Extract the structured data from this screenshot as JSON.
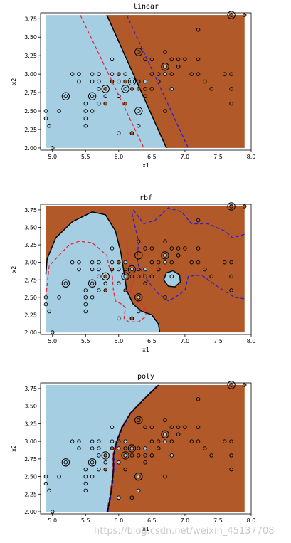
{
  "chart_data": [
    {
      "type": "scatter",
      "title": "linear",
      "xlabel": "x1",
      "ylabel": "x2",
      "xlim": [
        4.82,
        8.0
      ],
      "ylim": [
        1.97,
        3.83
      ],
      "xticks": [
        "5.0",
        "5.5",
        "6.0",
        "6.5",
        "7.0",
        "7.5",
        "8.0"
      ],
      "yticks": [
        "2.00",
        "2.25",
        "2.50",
        "2.75",
        "3.00",
        "3.25",
        "3.50",
        "3.75"
      ],
      "region_colors": {
        "class0": "#a6cee3",
        "class1": "#b15928"
      },
      "boundary": [
        [
          5.82,
          3.8
        ],
        [
          6.72,
          2.0
        ]
      ],
      "margin_lower": [
        [
          5.42,
          3.8
        ],
        [
          6.38,
          2.0
        ]
      ],
      "margin_upper": [
        [
          6.12,
          3.8
        ],
        [
          7.05,
          2.0
        ]
      ],
      "decision_region": [
        [
          5.82,
          3.8
        ],
        [
          7.9,
          3.8
        ],
        [
          7.9,
          2.0
        ],
        [
          6.72,
          2.0
        ]
      ]
    },
    {
      "type": "scatter",
      "title": "rbf",
      "xlabel": "x1",
      "ylabel": "x2",
      "xlim": [
        4.82,
        8.0
      ],
      "ylim": [
        1.97,
        3.83
      ],
      "xticks": [
        "5.0",
        "5.5",
        "6.0",
        "6.5",
        "7.0",
        "7.5",
        "8.0"
      ],
      "yticks": [
        "2.00",
        "2.25",
        "2.50",
        "2.75",
        "3.00",
        "3.25",
        "3.50",
        "3.75"
      ],
      "region_colors": {
        "class0": "#a6cee3",
        "class1": "#b15928"
      },
      "boundary": [
        [
          4.9,
          2.83
        ],
        [
          4.92,
          3.05
        ],
        [
          5.05,
          3.35
        ],
        [
          5.3,
          3.58
        ],
        [
          5.6,
          3.72
        ],
        [
          5.8,
          3.68
        ],
        [
          5.95,
          3.45
        ],
        [
          6.03,
          3.15
        ],
        [
          6.08,
          2.85
        ],
        [
          6.12,
          2.6
        ],
        [
          6.22,
          2.4
        ],
        [
          6.35,
          2.3
        ],
        [
          6.5,
          2.25
        ],
        [
          6.6,
          2.12
        ],
        [
          6.62,
          2.0
        ]
      ],
      "boundary_island": [
        [
          6.68,
          2.75
        ],
        [
          6.72,
          2.85
        ],
        [
          6.82,
          2.88
        ],
        [
          6.92,
          2.82
        ],
        [
          6.93,
          2.72
        ],
        [
          6.85,
          2.65
        ],
        [
          6.75,
          2.66
        ],
        [
          6.68,
          2.75
        ]
      ],
      "margin_lower": [
        [
          4.9,
          2.5
        ],
        [
          4.95,
          2.95
        ],
        [
          5.05,
          3.05
        ],
        [
          5.15,
          3.15
        ],
        [
          5.25,
          3.25
        ],
        [
          5.4,
          3.3
        ],
        [
          5.6,
          3.28
        ],
        [
          5.7,
          3.2
        ],
        [
          5.82,
          3.1
        ],
        [
          5.85,
          2.95
        ],
        [
          5.9,
          2.85
        ],
        [
          5.92,
          2.6
        ],
        [
          5.95,
          2.45
        ],
        [
          6.05,
          2.4
        ],
        [
          6.1,
          2.35
        ],
        [
          6.08,
          2.2
        ],
        [
          6.15,
          2.15
        ],
        [
          6.3,
          2.15
        ],
        [
          6.4,
          2.22
        ],
        [
          6.42,
          2.3
        ],
        [
          6.35,
          2.42
        ],
        [
          6.25,
          2.5
        ],
        [
          6.18,
          2.58
        ],
        [
          6.2,
          2.7
        ],
        [
          6.25,
          2.78
        ],
        [
          6.2,
          2.9
        ],
        [
          6.15,
          3.05
        ],
        [
          6.12,
          3.3
        ]
      ],
      "margin_upper": [
        [
          6.2,
          3.7
        ],
        [
          6.25,
          3.5
        ],
        [
          6.3,
          3.3
        ],
        [
          6.28,
          3.05
        ],
        [
          6.3,
          2.95
        ],
        [
          6.45,
          2.72
        ],
        [
          6.6,
          2.55
        ],
        [
          6.75,
          2.45
        ],
        [
          6.85,
          2.5
        ],
        [
          7.0,
          2.6
        ],
        [
          7.05,
          2.8
        ],
        [
          7.25,
          2.82
        ],
        [
          7.5,
          2.65
        ],
        [
          7.75,
          2.5
        ],
        [
          7.9,
          2.48
        ]
      ],
      "margin_upper_2": [
        [
          7.9,
          3.4
        ],
        [
          7.72,
          3.35
        ],
        [
          7.6,
          3.45
        ],
        [
          7.35,
          3.55
        ],
        [
          7.1,
          3.55
        ],
        [
          6.95,
          3.72
        ],
        [
          6.75,
          3.78
        ],
        [
          6.55,
          3.6
        ],
        [
          6.38,
          3.55
        ],
        [
          6.22,
          3.75
        ]
      ]
    },
    {
      "type": "scatter",
      "title": "poly",
      "xlabel": "x1",
      "ylabel": "x2",
      "xlim": [
        4.82,
        8.0
      ],
      "ylim": [
        1.97,
        3.83
      ],
      "xticks": [
        "5.0",
        "5.5",
        "6.0",
        "6.5",
        "7.0",
        "7.5",
        "8.0"
      ],
      "yticks": [
        "2.00",
        "2.25",
        "2.50",
        "2.75",
        "3.00",
        "3.25",
        "3.50",
        "3.75"
      ],
      "region_colors": {
        "class0": "#a6cee3",
        "class1": "#b15928"
      },
      "boundary": [
        [
          5.83,
          2.0
        ],
        [
          5.87,
          2.2
        ],
        [
          5.9,
          2.4
        ],
        [
          5.92,
          2.6
        ],
        [
          5.92,
          2.8
        ],
        [
          5.97,
          3.0
        ],
        [
          6.05,
          3.2
        ],
        [
          6.18,
          3.4
        ],
        [
          6.38,
          3.6
        ],
        [
          6.6,
          3.8
        ]
      ],
      "margin_lower": [
        [
          5.82,
          2.0
        ],
        [
          5.86,
          2.2
        ],
        [
          5.89,
          2.4
        ],
        [
          5.91,
          2.6
        ],
        [
          5.91,
          2.8
        ],
        [
          5.96,
          3.0
        ],
        [
          6.04,
          3.2
        ],
        [
          6.17,
          3.4
        ],
        [
          6.37,
          3.6
        ],
        [
          6.59,
          3.8
        ]
      ],
      "margin_upper": [
        [
          5.84,
          2.0
        ],
        [
          5.88,
          2.2
        ],
        [
          5.91,
          2.4
        ],
        [
          5.93,
          2.6
        ],
        [
          5.93,
          2.8
        ],
        [
          5.98,
          3.0
        ],
        [
          6.06,
          3.2
        ],
        [
          6.19,
          3.4
        ],
        [
          6.39,
          3.6
        ],
        [
          6.61,
          3.8
        ]
      ]
    }
  ],
  "points": [
    {
      "x": 4.9,
      "y": 2.5,
      "c": 0
    },
    {
      "x": 4.9,
      "y": 2.4,
      "c": 0
    },
    {
      "x": 4.95,
      "y": 2.3,
      "c": 0
    },
    {
      "x": 5.0,
      "y": 2.0,
      "c": 0
    },
    {
      "x": 5.1,
      "y": 2.5,
      "c": 0
    },
    {
      "x": 5.2,
      "y": 2.7,
      "c": 0
    },
    {
      "x": 5.3,
      "y": 3.0,
      "c": 0
    },
    {
      "x": 5.4,
      "y": 2.9,
      "c": 0
    },
    {
      "x": 5.4,
      "y": 3.0,
      "c": 0
    },
    {
      "x": 5.5,
      "y": 2.6,
      "c": 0
    },
    {
      "x": 5.5,
      "y": 2.5,
      "c": 0
    },
    {
      "x": 5.5,
      "y": 2.4,
      "c": 0
    },
    {
      "x": 5.5,
      "y": 2.3,
      "c": 0
    },
    {
      "x": 5.6,
      "y": 3.0,
      "c": 0
    },
    {
      "x": 5.6,
      "y": 2.9,
      "c": 0
    },
    {
      "x": 5.6,
      "y": 2.7,
      "c": 0
    },
    {
      "x": 5.6,
      "y": 2.5,
      "c": 0
    },
    {
      "x": 5.7,
      "y": 3.0,
      "c": 0
    },
    {
      "x": 5.7,
      "y": 2.9,
      "c": 0
    },
    {
      "x": 5.7,
      "y": 2.8,
      "c": 0
    },
    {
      "x": 5.7,
      "y": 2.6,
      "c": 0
    },
    {
      "x": 5.8,
      "y": 2.8,
      "c": 1
    },
    {
      "x": 5.8,
      "y": 2.7,
      "c": 0
    },
    {
      "x": 5.9,
      "y": 3.2,
      "c": 0
    },
    {
      "x": 5.9,
      "y": 3.0,
      "c": 0
    },
    {
      "x": 6.0,
      "y": 2.7,
      "c": 0
    },
    {
      "x": 6.0,
      "y": 2.2,
      "c": 0
    },
    {
      "x": 6.0,
      "y": 2.9,
      "c": 0
    },
    {
      "x": 6.1,
      "y": 3.0,
      "c": 0
    },
    {
      "x": 6.1,
      "y": 2.8,
      "c": 0
    },
    {
      "x": 6.2,
      "y": 2.9,
      "c": 0
    },
    {
      "x": 6.2,
      "y": 2.2,
      "c": 0
    },
    {
      "x": 6.3,
      "y": 2.5,
      "c": 0
    },
    {
      "x": 6.3,
      "y": 2.3,
      "c": 0
    },
    {
      "x": 6.4,
      "y": 2.9,
      "c": 0
    },
    {
      "x": 6.5,
      "y": 2.8,
      "c": 0
    },
    {
      "x": 6.6,
      "y": 2.9,
      "c": 0
    },
    {
      "x": 6.7,
      "y": 3.1,
      "c": 0
    },
    {
      "x": 6.8,
      "y": 2.8,
      "c": 0
    },
    {
      "x": 6.7,
      "y": 3.0,
      "c": 0
    },
    {
      "x": 5.8,
      "y": 2.6,
      "c": 1
    },
    {
      "x": 5.9,
      "y": 2.9,
      "c": 1
    },
    {
      "x": 6.0,
      "y": 3.0,
      "c": 1
    },
    {
      "x": 6.1,
      "y": 2.9,
      "c": 1
    },
    {
      "x": 6.2,
      "y": 2.8,
      "c": 1
    },
    {
      "x": 6.3,
      "y": 3.3,
      "c": 1
    },
    {
      "x": 6.3,
      "y": 2.9,
      "c": 1
    },
    {
      "x": 6.3,
      "y": 2.8,
      "c": 1
    },
    {
      "x": 6.4,
      "y": 3.2,
      "c": 1
    },
    {
      "x": 6.4,
      "y": 2.8,
      "c": 1
    },
    {
      "x": 6.4,
      "y": 2.7,
      "c": 1
    },
    {
      "x": 6.5,
      "y": 3.2,
      "c": 1
    },
    {
      "x": 6.5,
      "y": 3.0,
      "c": 1
    },
    {
      "x": 6.6,
      "y": 3.0,
      "c": 1
    },
    {
      "x": 6.7,
      "y": 3.3,
      "c": 1
    },
    {
      "x": 6.7,
      "y": 2.5,
      "c": 1
    },
    {
      "x": 6.8,
      "y": 3.2,
      "c": 1
    },
    {
      "x": 6.9,
      "y": 3.2,
      "c": 1
    },
    {
      "x": 6.9,
      "y": 3.1,
      "c": 1
    },
    {
      "x": 7.0,
      "y": 3.2,
      "c": 1
    },
    {
      "x": 7.1,
      "y": 3.0,
      "c": 1
    },
    {
      "x": 7.2,
      "y": 3.6,
      "c": 1
    },
    {
      "x": 7.2,
      "y": 3.2,
      "c": 1
    },
    {
      "x": 7.2,
      "y": 3.0,
      "c": 1
    },
    {
      "x": 7.3,
      "y": 2.9,
      "c": 1
    },
    {
      "x": 7.4,
      "y": 2.8,
      "c": 1
    },
    {
      "x": 7.6,
      "y": 3.0,
      "c": 1
    },
    {
      "x": 7.7,
      "y": 3.8,
      "c": 1
    },
    {
      "x": 7.7,
      "y": 3.0,
      "c": 1
    },
    {
      "x": 7.7,
      "y": 2.8,
      "c": 1
    },
    {
      "x": 7.7,
      "y": 2.6,
      "c": 1
    },
    {
      "x": 7.9,
      "y": 3.8,
      "c": 1
    },
    {
      "x": 6.8,
      "y": 3.0,
      "c": 1
    },
    {
      "x": 6.9,
      "y": 3.1,
      "c": 1
    },
    {
      "x": 6.5,
      "y": 2.8,
      "c": 1
    },
    {
      "x": 6.6,
      "y": 2.9,
      "c": 1
    },
    {
      "x": 6.1,
      "y": 2.6,
      "c": 1
    },
    {
      "x": 6.2,
      "y": 2.2,
      "c": 1
    }
  ],
  "support_vectors": {
    "linear": [
      [
        5.2,
        2.7
      ],
      [
        5.6,
        2.7
      ],
      [
        5.8,
        2.8
      ],
      [
        6.1,
        2.8
      ],
      [
        6.2,
        2.9
      ],
      [
        6.3,
        2.5
      ],
      [
        6.3,
        3.3
      ],
      [
        6.7,
        3.1
      ],
      [
        7.7,
        3.8
      ]
    ],
    "rbf": [
      [
        5.2,
        2.7
      ],
      [
        5.6,
        2.7
      ],
      [
        5.8,
        2.8
      ],
      [
        6.1,
        2.8
      ],
      [
        6.2,
        2.9
      ],
      [
        6.3,
        2.5
      ],
      [
        6.3,
        3.1
      ],
      [
        6.7,
        3.1
      ],
      [
        7.7,
        3.8
      ]
    ],
    "poly": [
      [
        5.2,
        2.7
      ],
      [
        5.6,
        2.7
      ],
      [
        5.8,
        2.8
      ],
      [
        6.1,
        2.8
      ],
      [
        6.2,
        2.9
      ],
      [
        6.3,
        2.5
      ],
      [
        6.3,
        3.3
      ],
      [
        6.7,
        3.1
      ],
      [
        7.7,
        3.8
      ]
    ]
  },
  "watermark": "https://blog.csdn.net/weixin_45137708"
}
